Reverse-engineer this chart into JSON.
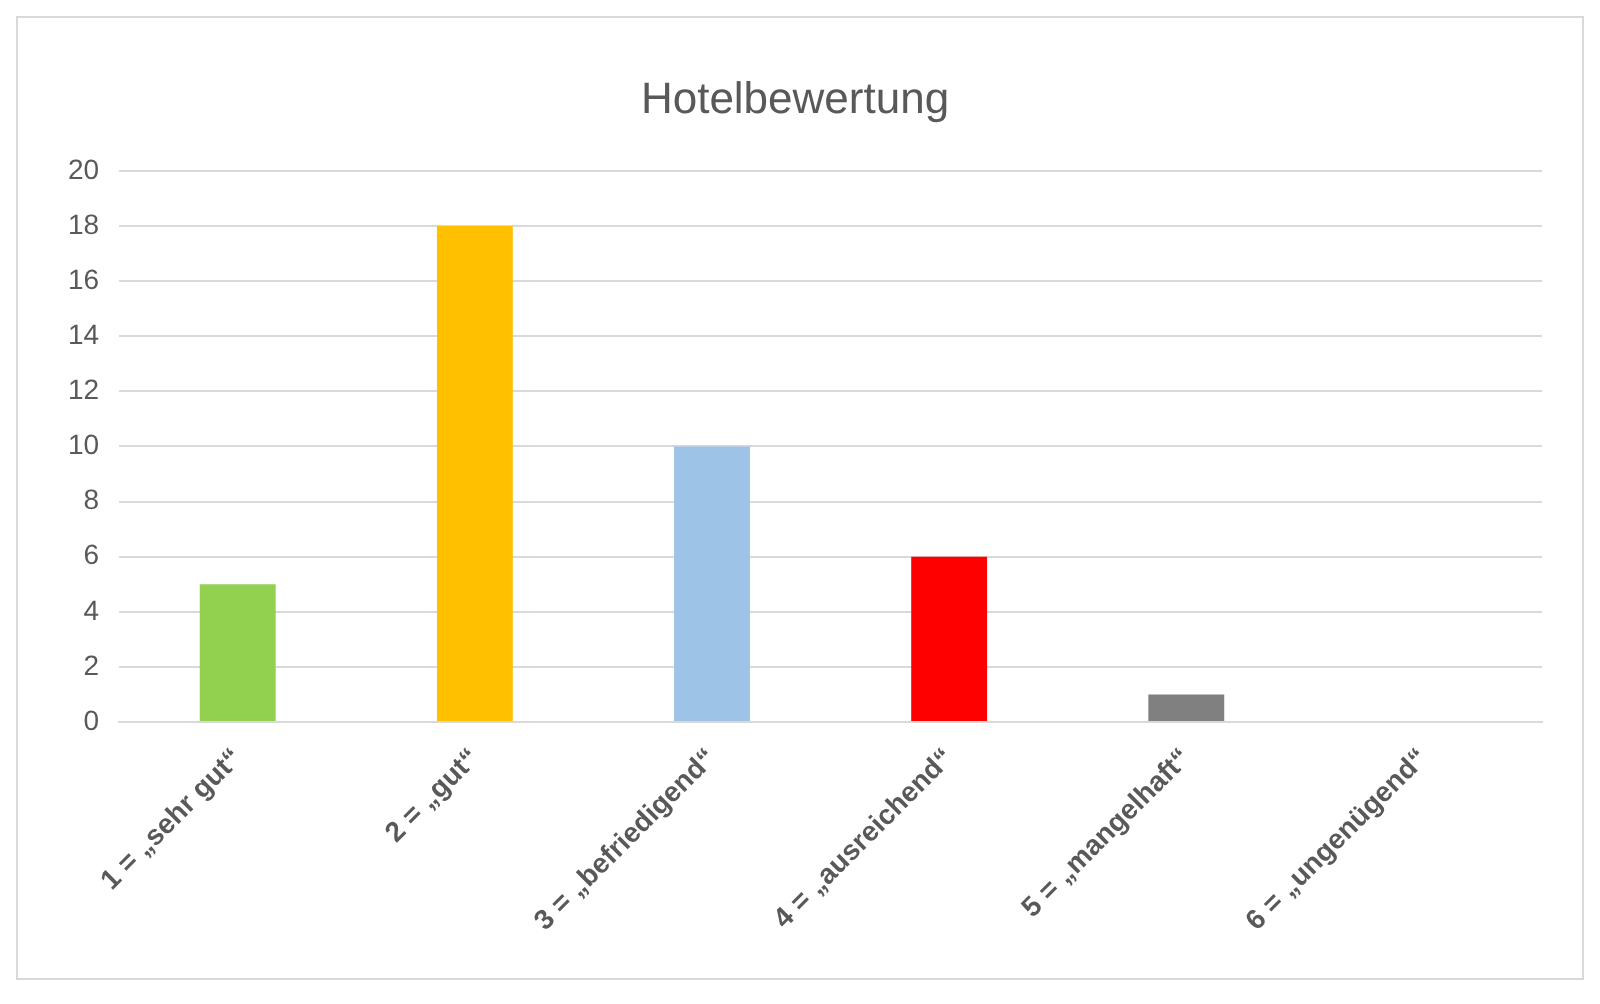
{
  "chart_data": {
    "type": "bar",
    "title": "Hotelbewertung",
    "categories": [
      "1 = „sehr gut“",
      "2 = „gut“",
      "3 = „befriedigend“",
      "4 = „ausreichend“",
      "5 = „mangelhaft“",
      "6 = „ungenügend“"
    ],
    "values": [
      5,
      18,
      10,
      6,
      1,
      0
    ],
    "colors": [
      "#92d050",
      "#ffc000",
      "#9dc3e6",
      "#ff0000",
      "#808080",
      "#5b9bd5"
    ],
    "ylim": [
      0,
      20
    ],
    "yticks": [
      0,
      2,
      4,
      6,
      8,
      10,
      12,
      14,
      16,
      18,
      20
    ],
    "grid": "y",
    "legend": false
  }
}
